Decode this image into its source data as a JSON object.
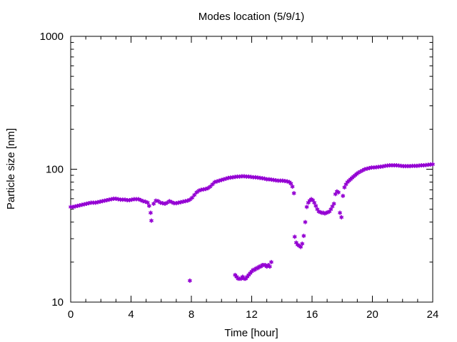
{
  "chart_data": {
    "type": "scatter",
    "title": "Modes location (5/9/1)",
    "xlabel": "Time [hour]",
    "ylabel": "Particle size [nm]",
    "xlim": [
      0,
      24
    ],
    "ylim": [
      10,
      1000
    ],
    "yscale": "log",
    "xticks": [
      0,
      4,
      8,
      12,
      16,
      20,
      24
    ],
    "yticks": [
      10,
      100,
      1000
    ],
    "xtick_labels": [
      "0",
      "4",
      "8",
      "12",
      "16",
      "20",
      "24"
    ],
    "ytick_labels": [
      "10",
      "100",
      "1000"
    ],
    "grid": false,
    "legend": "none",
    "marker": "asterisk",
    "color": "#9400d3",
    "series": [
      {
        "points": [
          [
            0.0,
            52
          ],
          [
            0.15,
            52
          ],
          [
            0.3,
            52.5
          ],
          [
            0.45,
            53
          ],
          [
            0.6,
            53.5
          ],
          [
            0.75,
            54
          ],
          [
            0.9,
            54.5
          ],
          [
            1.05,
            55
          ],
          [
            1.2,
            55.5
          ],
          [
            1.35,
            56
          ],
          [
            1.5,
            56
          ],
          [
            1.65,
            56
          ],
          [
            1.8,
            56.5
          ],
          [
            1.95,
            57
          ],
          [
            2.1,
            57.5
          ],
          [
            2.25,
            58
          ],
          [
            2.4,
            58.5
          ],
          [
            2.55,
            59
          ],
          [
            2.7,
            59.5
          ],
          [
            2.85,
            60
          ],
          [
            3.0,
            60
          ],
          [
            3.15,
            59.5
          ],
          [
            3.3,
            59
          ],
          [
            3.45,
            59
          ],
          [
            3.6,
            59
          ],
          [
            3.75,
            58.5
          ],
          [
            3.9,
            58.5
          ],
          [
            4.05,
            59
          ],
          [
            4.2,
            59.5
          ],
          [
            4.35,
            59.5
          ],
          [
            4.5,
            59.5
          ],
          [
            4.65,
            58.5
          ],
          [
            4.8,
            57.5
          ],
          [
            4.95,
            57
          ],
          [
            5.1,
            56
          ],
          [
            5.2,
            53
          ],
          [
            5.3,
            47
          ],
          [
            5.35,
            41
          ],
          [
            5.5,
            55
          ],
          [
            5.65,
            58
          ],
          [
            5.8,
            57.5
          ],
          [
            5.95,
            56
          ],
          [
            6.1,
            55.5
          ],
          [
            6.25,
            55
          ],
          [
            6.4,
            56
          ],
          [
            6.55,
            57.5
          ],
          [
            6.7,
            56.5
          ],
          [
            6.85,
            55.5
          ],
          [
            7.0,
            55.5
          ],
          [
            7.15,
            56
          ],
          [
            7.3,
            56.5
          ],
          [
            7.45,
            57
          ],
          [
            7.6,
            57.5
          ],
          [
            7.75,
            58
          ],
          [
            7.9,
            59
          ],
          [
            8.05,
            61
          ],
          [
            8.2,
            64
          ],
          [
            8.35,
            67
          ],
          [
            8.5,
            69
          ],
          [
            8.65,
            70
          ],
          [
            8.8,
            70.5
          ],
          [
            8.95,
            71
          ],
          [
            9.1,
            72
          ],
          [
            9.25,
            74
          ],
          [
            9.4,
            77
          ],
          [
            9.55,
            80
          ],
          [
            9.7,
            81
          ],
          [
            9.85,
            82
          ],
          [
            10.0,
            83
          ],
          [
            10.15,
            84
          ],
          [
            10.3,
            85
          ],
          [
            10.45,
            86
          ],
          [
            10.6,
            86.5
          ],
          [
            10.75,
            87
          ],
          [
            10.9,
            87.5
          ],
          [
            11.05,
            88
          ],
          [
            11.2,
            88
          ],
          [
            11.35,
            88.5
          ],
          [
            11.5,
            88.5
          ],
          [
            11.65,
            88
          ],
          [
            11.8,
            88
          ],
          [
            11.95,
            87.5
          ],
          [
            12.1,
            87
          ],
          [
            12.25,
            87
          ],
          [
            12.4,
            86.5
          ],
          [
            12.55,
            86
          ],
          [
            12.7,
            85.5
          ],
          [
            12.85,
            85
          ],
          [
            13.0,
            84
          ],
          [
            13.15,
            84
          ],
          [
            13.3,
            83.5
          ],
          [
            13.45,
            83
          ],
          [
            13.6,
            82.5
          ],
          [
            13.75,
            82
          ],
          [
            13.9,
            82
          ],
          [
            14.05,
            82
          ],
          [
            14.2,
            81.5
          ],
          [
            14.35,
            81
          ],
          [
            14.5,
            80
          ],
          [
            14.6,
            78
          ],
          [
            14.7,
            74
          ],
          [
            14.8,
            66
          ],
          [
            14.85,
            31
          ],
          [
            14.95,
            28
          ],
          [
            15.05,
            27
          ],
          [
            15.15,
            26.5
          ],
          [
            15.25,
            26
          ],
          [
            15.35,
            27.5
          ],
          [
            15.45,
            31.5
          ],
          [
            15.55,
            40
          ],
          [
            15.65,
            52
          ],
          [
            15.75,
            56
          ],
          [
            15.85,
            58
          ],
          [
            15.95,
            59.5
          ],
          [
            16.05,
            58.5
          ],
          [
            16.15,
            56
          ],
          [
            16.25,
            53
          ],
          [
            16.35,
            50
          ],
          [
            16.45,
            48
          ],
          [
            16.55,
            47.5
          ],
          [
            16.65,
            47
          ],
          [
            16.75,
            47
          ],
          [
            16.85,
            46.5
          ],
          [
            16.95,
            47
          ],
          [
            17.05,
            47.5
          ],
          [
            17.15,
            48
          ],
          [
            17.25,
            50
          ],
          [
            17.35,
            52.5
          ],
          [
            17.45,
            55
          ],
          [
            17.55,
            65
          ],
          [
            17.65,
            68
          ],
          [
            17.75,
            67
          ],
          [
            17.85,
            47
          ],
          [
            17.95,
            43.5
          ],
          [
            18.05,
            63
          ],
          [
            18.15,
            73
          ],
          [
            18.25,
            77
          ],
          [
            18.35,
            80
          ],
          [
            18.45,
            82
          ],
          [
            18.55,
            84
          ],
          [
            18.65,
            86
          ],
          [
            18.75,
            88
          ],
          [
            18.85,
            90
          ],
          [
            18.95,
            92
          ],
          [
            19.05,
            94
          ],
          [
            19.2,
            96
          ],
          [
            19.35,
            98
          ],
          [
            19.5,
            100
          ],
          [
            19.65,
            101
          ],
          [
            19.8,
            102
          ],
          [
            19.95,
            103
          ],
          [
            20.1,
            103
          ],
          [
            20.25,
            103.5
          ],
          [
            20.4,
            104
          ],
          [
            20.55,
            104.5
          ],
          [
            20.7,
            105
          ],
          [
            20.85,
            106
          ],
          [
            21.0,
            106.5
          ],
          [
            21.15,
            107
          ],
          [
            21.3,
            107
          ],
          [
            21.45,
            107
          ],
          [
            21.6,
            107
          ],
          [
            21.75,
            106.5
          ],
          [
            21.9,
            106
          ],
          [
            22.05,
            105.5
          ],
          [
            22.2,
            105.5
          ],
          [
            22.35,
            105.5
          ],
          [
            22.5,
            105.5
          ],
          [
            22.65,
            106
          ],
          [
            22.8,
            106
          ],
          [
            22.95,
            106
          ],
          [
            23.1,
            106.5
          ],
          [
            23.25,
            107
          ],
          [
            23.4,
            107
          ],
          [
            23.55,
            107.5
          ],
          [
            23.7,
            108
          ],
          [
            23.85,
            108.5
          ],
          [
            24.0,
            109
          ]
        ]
      },
      {
        "points": [
          [
            7.9,
            14.5
          ],
          [
            10.9,
            16
          ],
          [
            11.0,
            15.5
          ],
          [
            11.1,
            15
          ],
          [
            11.2,
            15
          ],
          [
            11.3,
            15
          ],
          [
            11.4,
            15.5
          ],
          [
            11.5,
            15
          ],
          [
            11.6,
            15
          ],
          [
            11.7,
            15.5
          ],
          [
            11.8,
            16
          ],
          [
            11.9,
            16.5
          ],
          [
            12.0,
            17
          ],
          [
            12.1,
            17.5
          ],
          [
            12.2,
            17.5
          ],
          [
            12.3,
            18
          ],
          [
            12.4,
            18
          ],
          [
            12.5,
            18.5
          ],
          [
            12.6,
            18.5
          ],
          [
            12.7,
            19
          ],
          [
            12.8,
            19
          ],
          [
            12.9,
            19
          ],
          [
            13.0,
            18.5
          ],
          [
            13.1,
            19
          ],
          [
            13.2,
            18.5
          ],
          [
            13.3,
            20
          ]
        ]
      }
    ]
  }
}
